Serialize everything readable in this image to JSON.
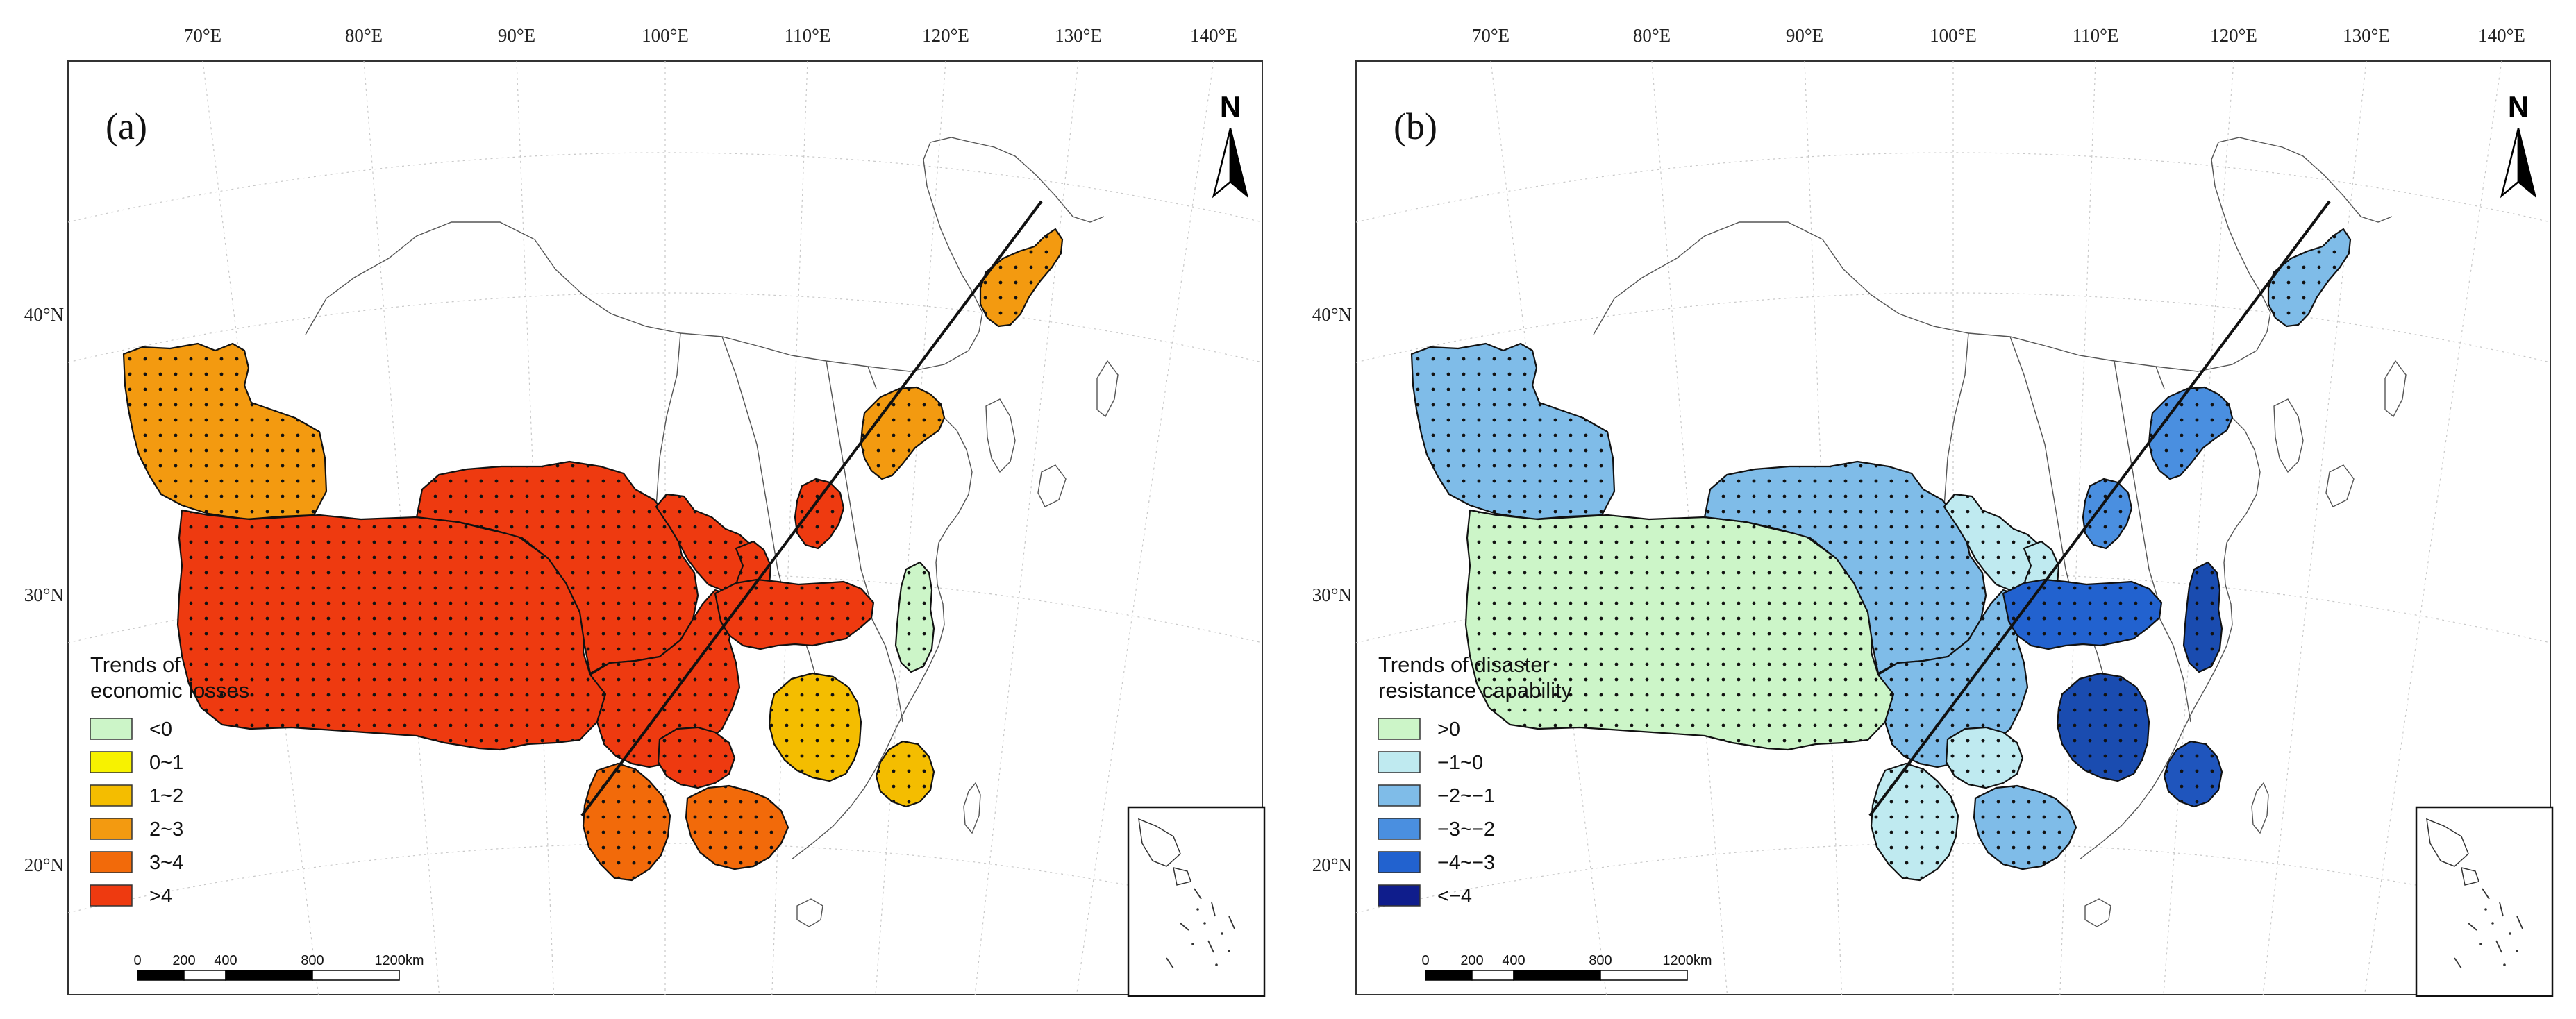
{
  "panels": [
    {
      "label": "(a)",
      "lon_ticks": [
        "70°E",
        "80°E",
        "90°E",
        "100°E",
        "110°E",
        "120°E",
        "130°E",
        "140°E"
      ],
      "lat_ticks": [
        "40°N",
        "30°N",
        "20°N"
      ],
      "north": "N",
      "legend": {
        "title_lines": [
          "Trends of",
          "economic losses"
        ],
        "items": [
          {
            "label": "<0",
            "color": "#ccf5c8"
          },
          {
            "label": "0~1",
            "color": "#f7f200"
          },
          {
            "label": "1~2",
            "color": "#f4bd00"
          },
          {
            "label": "2~3",
            "color": "#f39a10"
          },
          {
            "label": "3~4",
            "color": "#f26a0a"
          },
          {
            "label": ">4",
            "color": "#ee3a10"
          }
        ]
      },
      "scale_labels": [
        "0",
        "200",
        "400",
        "800",
        "1200km"
      ],
      "region_colors": {
        "xinjiang": "#f39a10",
        "tibet": "#ee3a10",
        "qinghai": "#ee3a10",
        "sichuan": "#ee3a10",
        "gansu": "#ee3a10",
        "shaanxi": "#ee3a10",
        "hubei": "#ee3a10",
        "jiangxi": "#f4bd00",
        "fujian": "#f4bd00",
        "yunnan": "#f26a0a",
        "guangxi": "#f26a0a",
        "guizhou": "#ee3a10",
        "shanxi": "#ee3a10",
        "hebei": "#f39a10",
        "heilongjiang": "#f39a10",
        "anhui": "#ccf5c8"
      }
    },
    {
      "label": "(b)",
      "lon_ticks": [
        "70°E",
        "80°E",
        "90°E",
        "100°E",
        "110°E",
        "120°E",
        "130°E",
        "140°E"
      ],
      "lat_ticks": [
        "40°N",
        "30°N",
        "20°N"
      ],
      "north": "N",
      "legend": {
        "title_lines": [
          "Trends of disaster",
          "resistance capability"
        ],
        "items": [
          {
            "label": ">0",
            "color": "#ccf5c8"
          },
          {
            "label": "−1~0",
            "color": "#bfeaf0"
          },
          {
            "label": "−2~−1",
            "color": "#7fbce8"
          },
          {
            "label": "−3~−2",
            "color": "#4a8fe0"
          },
          {
            "label": "−4~−3",
            "color": "#2262cf"
          },
          {
            "label": "<−4",
            "color": "#0f1d8c"
          }
        ]
      },
      "scale_labels": [
        "0",
        "200",
        "400",
        "800",
        "1200km"
      ],
      "region_colors": {
        "xinjiang": "#7fbce8",
        "tibet": "#ccf5c8",
        "qinghai": "#7fbce8",
        "sichuan": "#7fbce8",
        "gansu": "#bfeaf0",
        "shaanxi": "#bfeaf0",
        "hubei": "#2262cf",
        "jiangxi": "#1a4cb0",
        "fujian": "#1f55bd",
        "yunnan": "#bfeaf0",
        "guangxi": "#7fbce8",
        "guizhou": "#bfeaf0",
        "shanxi": "#4a8fe0",
        "hebei": "#4a8fe0",
        "heilongjiang": "#7fbce8",
        "anhui": "#1a4cb0"
      }
    }
  ]
}
